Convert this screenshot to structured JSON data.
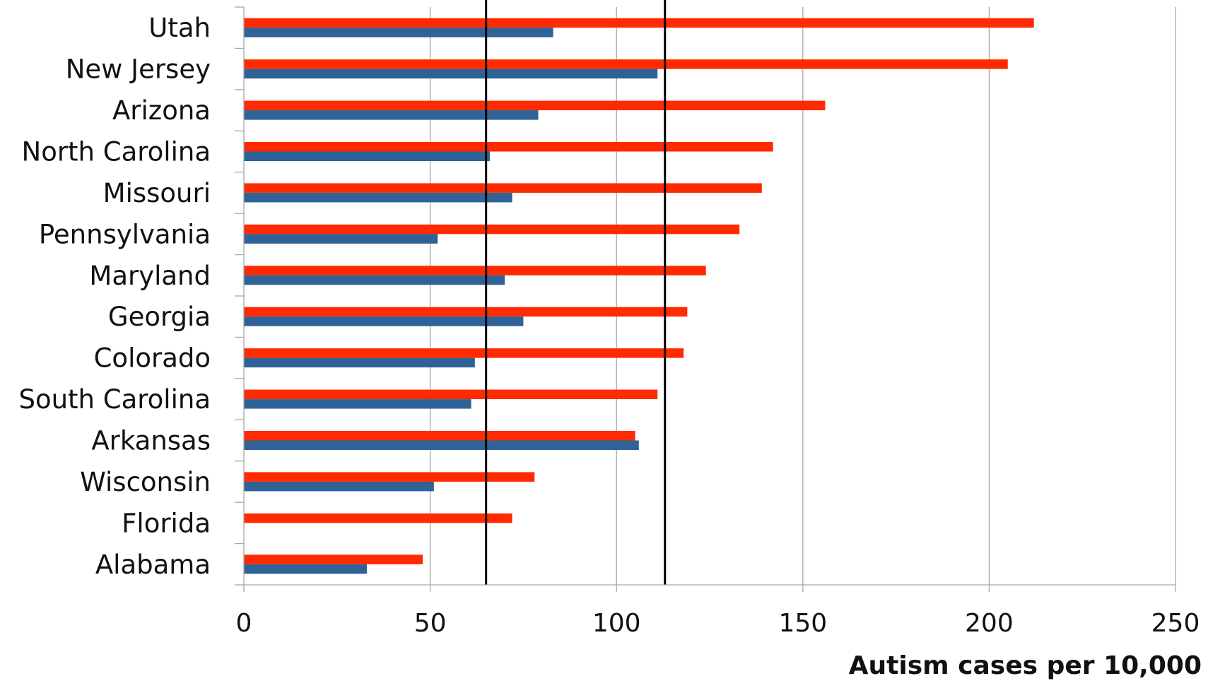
{
  "chart_data": {
    "type": "bar",
    "orientation": "horizontal",
    "categories": [
      "Utah",
      "New Jersey",
      "Arizona",
      "North Carolina",
      "Missouri",
      "Pennsylvania",
      "Maryland",
      "Georgia",
      "Colorado",
      "South Carolina",
      "Arkansas",
      "Wisconsin",
      "Florida",
      "Alabama"
    ],
    "series": [
      {
        "color": "#ff2a00",
        "values": [
          212,
          205,
          156,
          142,
          139,
          133,
          124,
          119,
          118,
          111,
          105,
          78,
          72,
          48
        ]
      },
      {
        "color": "#2f6296",
        "values": [
          83,
          111,
          79,
          66,
          72,
          52,
          70,
          75,
          62,
          61,
          106,
          51,
          null,
          33
        ]
      }
    ],
    "reference_lines": [
      65,
      113
    ],
    "reference_line_color": "#000000",
    "xlabel": "Autism cases per 10,000",
    "ylabel": "",
    "title": "",
    "xlim": [
      0,
      250
    ],
    "x_ticks": [
      "0",
      "50",
      "100",
      "150",
      "200",
      "250"
    ],
    "grid": "vertical",
    "grid_color": "#a6a6a6",
    "legend": "none"
  }
}
